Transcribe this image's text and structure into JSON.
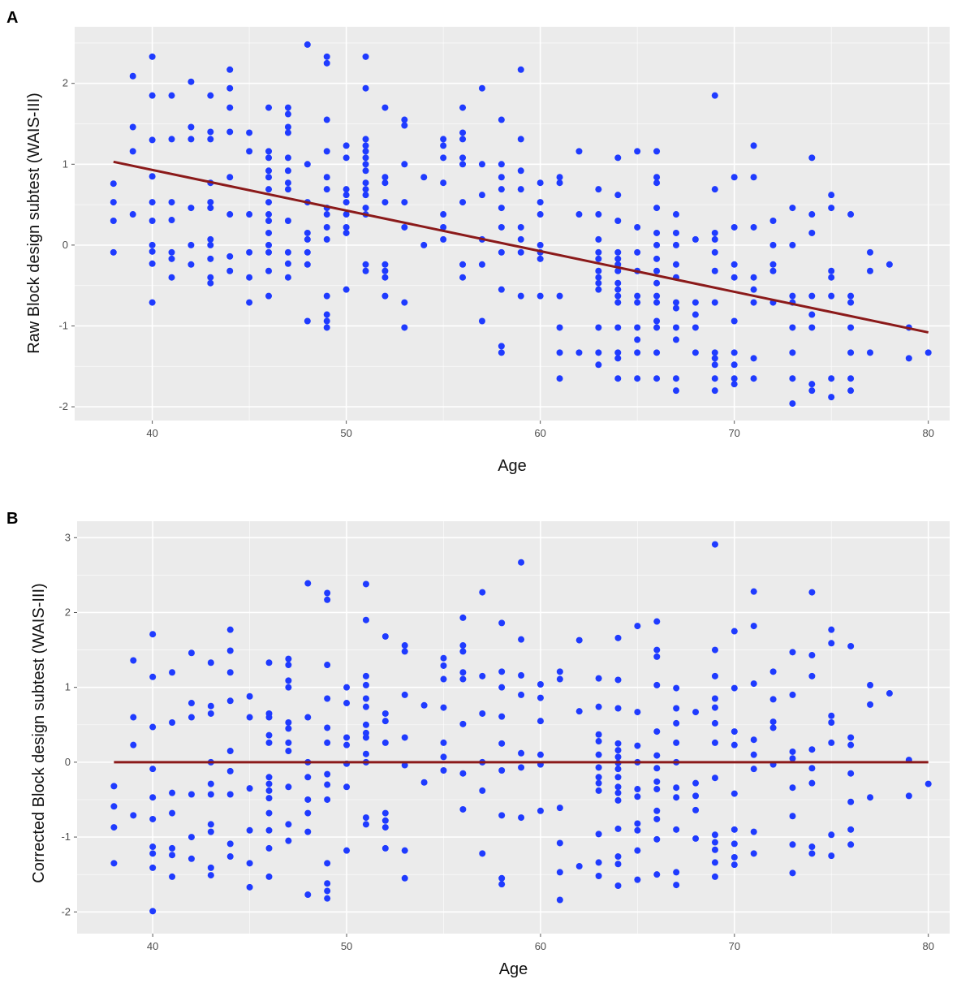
{
  "chart_data": [
    {
      "panel_label": "A",
      "type": "scatter",
      "xlabel": "Age",
      "ylabel": "Raw Block design subtest (WAIS-III)",
      "xticks": [
        40,
        50,
        60,
        70,
        80
      ],
      "yticks": [
        -2,
        -1,
        0,
        1,
        2
      ],
      "xlim": [
        36,
        81.1
      ],
      "ylim": [
        -2.17,
        2.7
      ],
      "grid": true,
      "background": "#EBEBEB",
      "point_color": "#1F3BFF",
      "fit_color": "#8B1A1A",
      "fit_line": [
        [
          38,
          1.03
        ],
        [
          80,
          -1.08
        ]
      ],
      "columns": [
        {
          "x": 38,
          "y": [
            0.76,
            0.53,
            0.3,
            -0.09
          ]
        },
        {
          "x": 39,
          "y": [
            2.09,
            1.46,
            1.16,
            0.38
          ]
        },
        {
          "x": 40,
          "y": [
            2.33,
            1.85,
            1.3,
            0.85,
            0.53,
            0.3,
            0,
            -0.08,
            -0.23,
            -0.71
          ]
        },
        {
          "x": 41,
          "y": [
            1.85,
            1.31,
            0.53,
            0.31,
            -0.09,
            -0.17,
            -0.4
          ]
        },
        {
          "x": 42,
          "y": [
            2.02,
            1.46,
            1.31,
            0.46,
            0,
            -0.24
          ]
        },
        {
          "x": 43,
          "y": [
            1.85,
            1.4,
            1.31,
            0.77,
            0.53,
            0.46,
            0.07,
            0,
            -0.17,
            -0.4,
            -0.47
          ]
        },
        {
          "x": 44,
          "y": [
            2.17,
            1.94,
            1.7,
            1.4,
            0.84,
            0.38,
            -0.14,
            -0.32
          ]
        },
        {
          "x": 45,
          "y": [
            1.39,
            1.16,
            0.38,
            -0.09,
            -0.4,
            -0.71
          ]
        },
        {
          "x": 46,
          "y": [
            1.7,
            1.16,
            1.08,
            0.92,
            0.84,
            0.69,
            0.53,
            0.38,
            0.3,
            0.15,
            0,
            -0.09,
            -0.32,
            -0.63
          ]
        },
        {
          "x": 47,
          "y": [
            1.7,
            1.62,
            1.46,
            1.39,
            1.08,
            0.92,
            0.77,
            0.69,
            0.3,
            -0.09,
            -0.23,
            -0.4
          ]
        },
        {
          "x": 48,
          "y": [
            2.48,
            1.0,
            0.53,
            0.15,
            0.07,
            -0.09,
            -0.24,
            -0.94
          ]
        },
        {
          "x": 49,
          "y": [
            2.33,
            2.25,
            1.55,
            1.16,
            0.84,
            0.69,
            0.46,
            0.38,
            0.22,
            0.07,
            -0.63,
            -0.86,
            -0.94,
            -1.02
          ]
        },
        {
          "x": 50,
          "y": [
            1.23,
            1.08,
            0.69,
            0.62,
            0.53,
            0.38,
            0.22,
            0.15,
            -0.55
          ]
        },
        {
          "x": 51,
          "y": [
            2.33,
            1.94,
            1.31,
            1.23,
            1.16,
            1.08,
            1.0,
            0.92,
            0.77,
            0.69,
            0.62,
            0.46,
            0.38,
            -0.24,
            -0.32
          ]
        },
        {
          "x": 52,
          "y": [
            1.7,
            0.84,
            0.77,
            0.53,
            -0.24,
            -0.32,
            -0.4,
            -0.63
          ]
        },
        {
          "x": 53,
          "y": [
            1.55,
            1.48,
            1.0,
            0.53,
            0.22,
            -0.71,
            -1.02
          ]
        },
        {
          "x": 54,
          "y": [
            0.84,
            0
          ]
        },
        {
          "x": 55,
          "y": [
            1.31,
            1.23,
            1.08,
            0.77,
            0.38,
            0.22,
            0.07
          ]
        },
        {
          "x": 56,
          "y": [
            1.7,
            1.39,
            1.31,
            1.08,
            1.0,
            0.53,
            -0.24,
            -0.4
          ]
        },
        {
          "x": 57,
          "y": [
            1.94,
            1.0,
            0.62,
            0.07,
            -0.24,
            -0.94
          ]
        },
        {
          "x": 58,
          "y": [
            1.55,
            1.0,
            0.84,
            0.69,
            0.46,
            0.22,
            -0.09,
            -0.55,
            -1.25,
            -1.33
          ]
        },
        {
          "x": 59,
          "y": [
            2.17,
            1.31,
            0.92,
            0.69,
            0.22,
            0.07,
            -0.09,
            -0.63
          ]
        },
        {
          "x": 60,
          "y": [
            0.77,
            0.53,
            0.38,
            0,
            -0.09,
            -0.17,
            -0.63
          ]
        },
        {
          "x": 61,
          "y": [
            0.84,
            0.77,
            -0.63,
            -1.02,
            -1.33,
            -1.65
          ]
        },
        {
          "x": 62,
          "y": [
            1.16,
            0.38,
            -1.33
          ]
        },
        {
          "x": 63,
          "y": [
            0.69,
            0.38,
            0.07,
            -0.09,
            -0.17,
            -0.32,
            -0.4,
            -0.47,
            -0.55,
            -1.02,
            -1.33,
            -1.48
          ]
        },
        {
          "x": 64,
          "y": [
            1.08,
            0.62,
            0.3,
            -0.09,
            -0.17,
            -0.24,
            -0.32,
            -0.47,
            -0.55,
            -0.63,
            -0.71,
            -1.02,
            -1.33,
            -1.4,
            -1.65
          ]
        },
        {
          "x": 65,
          "y": [
            1.16,
            0.22,
            -0.09,
            -0.32,
            -0.63,
            -0.71,
            -1.02,
            -1.17,
            -1.33,
            -1.65
          ]
        },
        {
          "x": 66,
          "y": [
            1.16,
            0.84,
            0.77,
            0.46,
            0.15,
            0,
            -0.17,
            -0.32,
            -0.47,
            -0.63,
            -0.71,
            -0.94,
            -1.02,
            -1.33,
            -1.65
          ]
        },
        {
          "x": 67,
          "y": [
            0.38,
            0.15,
            0,
            -0.24,
            -0.4,
            -0.71,
            -0.78,
            -1.02,
            -1.17,
            -1.65,
            -1.8
          ]
        },
        {
          "x": 68,
          "y": [
            0.07,
            -0.71,
            -0.86,
            -1.02,
            -1.33
          ]
        },
        {
          "x": 69,
          "y": [
            1.85,
            0.69,
            0.15,
            0.07,
            -0.09,
            -0.32,
            -0.71,
            -1.33,
            -1.4,
            -1.48,
            -1.65,
            -1.8
          ]
        },
        {
          "x": 70,
          "y": [
            0.84,
            0.22,
            -0.24,
            -0.4,
            -0.94,
            -1.33,
            -1.48,
            -1.65,
            -1.72
          ]
        },
        {
          "x": 71,
          "y": [
            1.23,
            0.84,
            0.22,
            -0.4,
            -0.55,
            -0.71,
            -1.4,
            -1.65
          ]
        },
        {
          "x": 72,
          "y": [
            0.3,
            0,
            -0.24,
            -0.32,
            -0.71
          ]
        },
        {
          "x": 73,
          "y": [
            0.46,
            0,
            -0.63,
            -0.71,
            -1.02,
            -1.33,
            -1.65,
            -1.96
          ]
        },
        {
          "x": 74,
          "y": [
            1.08,
            0.38,
            0.15,
            -0.63,
            -0.86,
            -1.02,
            -1.72,
            -1.8
          ]
        },
        {
          "x": 75,
          "y": [
            0.62,
            0.46,
            -0.32,
            -0.4,
            -0.63,
            -1.65,
            -1.88
          ]
        },
        {
          "x": 76,
          "y": [
            0.38,
            -0.63,
            -0.71,
            -1.02,
            -1.33,
            -1.65,
            -1.8
          ]
        },
        {
          "x": 77,
          "y": [
            -0.09,
            -0.32,
            -1.33
          ]
        },
        {
          "x": 78,
          "y": [
            -0.24
          ]
        },
        {
          "x": 79,
          "y": [
            -1.02,
            -1.4
          ]
        },
        {
          "x": 80,
          "y": [
            -1.33
          ]
        }
      ]
    },
    {
      "panel_label": "B",
      "type": "scatter",
      "xlabel": "Age",
      "ylabel": "Corrected Block design subtest (WAIS-III)",
      "xticks": [
        40,
        50,
        60,
        70,
        80
      ],
      "yticks": [
        -2,
        -1,
        0,
        1,
        2,
        3
      ],
      "xlim": [
        36.1,
        81.1
      ],
      "ylim": [
        -2.29,
        3.22
      ],
      "grid": true,
      "background": "#EBEBEB",
      "point_color": "#1F3BFF",
      "fit_color": "#8B1A1A",
      "fit_line": [
        [
          38,
          0
        ],
        [
          80,
          0
        ]
      ],
      "columns": [
        {
          "x": 38,
          "y": [
            -0.32,
            -0.59,
            -0.87,
            -1.35
          ]
        },
        {
          "x": 39,
          "y": [
            1.36,
            0.6,
            0.23,
            -0.71
          ]
        },
        {
          "x": 40,
          "y": [
            1.71,
            1.14,
            0.47,
            -0.09,
            -0.47,
            -0.76,
            -1.13,
            -1.22,
            -1.41,
            -1.99
          ]
        },
        {
          "x": 41,
          "y": [
            1.2,
            0.53,
            -0.41,
            -0.68,
            -1.15,
            -1.24,
            -1.53
          ]
        },
        {
          "x": 42,
          "y": [
            1.46,
            0.79,
            0.6,
            -0.43,
            -1.0,
            -1.29
          ]
        },
        {
          "x": 43,
          "y": [
            1.33,
            0.75,
            0.65,
            0,
            -0.29,
            -0.43,
            -0.83,
            -0.93,
            -1.41,
            -1.51
          ]
        },
        {
          "x": 44,
          "y": [
            1.77,
            1.49,
            1.2,
            0.82,
            0.15,
            -0.12,
            -0.43,
            -1.09,
            -1.26
          ]
        },
        {
          "x": 45,
          "y": [
            0.88,
            0.6,
            -0.35,
            -0.91,
            -1.35,
            -1.67
          ]
        },
        {
          "x": 46,
          "y": [
            1.33,
            0.65,
            0.6,
            0.36,
            0.26,
            -0.2,
            -0.29,
            -0.38,
            -0.48,
            -0.68,
            -0.91,
            -1.15,
            -1.53
          ]
        },
        {
          "x": 47,
          "y": [
            1.38,
            1.3,
            1.09,
            1.0,
            0.53,
            0.45,
            0.26,
            0.15,
            -0.33,
            -0.83,
            -1.05
          ]
        },
        {
          "x": 48,
          "y": [
            2.39,
            0.6,
            0,
            -0.2,
            -0.5,
            -0.68,
            -0.93,
            -1.77
          ]
        },
        {
          "x": 49,
          "y": [
            2.26,
            2.17,
            1.3,
            0.85,
            0.46,
            0.26,
            -0.16,
            -0.3,
            -0.5,
            -1.35,
            -1.62,
            -1.72,
            -1.82
          ]
        },
        {
          "x": 50,
          "y": [
            1.0,
            0.79,
            0.33,
            0.23,
            -0.02,
            -0.33,
            -1.18
          ]
        },
        {
          "x": 51,
          "y": [
            2.38,
            1.9,
            1.15,
            1.03,
            0.85,
            0.74,
            0.5,
            0.39,
            0.33,
            0.11,
            0,
            -0.74,
            -0.83
          ]
        },
        {
          "x": 52,
          "y": [
            1.68,
            0.65,
            0.55,
            0.26,
            -0.68,
            -0.78,
            -0.87,
            -1.15
          ]
        },
        {
          "x": 53,
          "y": [
            1.56,
            1.48,
            0.9,
            0.33,
            -0.04,
            -1.18,
            -1.55
          ]
        },
        {
          "x": 54,
          "y": [
            0.76,
            -0.27
          ]
        },
        {
          "x": 55,
          "y": [
            1.39,
            1.29,
            1.11,
            0.73,
            0.26,
            0.07,
            -0.11
          ]
        },
        {
          "x": 56,
          "y": [
            1.93,
            1.56,
            1.48,
            1.2,
            1.11,
            0.51,
            -0.15,
            -0.63
          ]
        },
        {
          "x": 57,
          "y": [
            2.27,
            1.15,
            0.65,
            0,
            -0.38,
            -1.22
          ]
        },
        {
          "x": 58,
          "y": [
            1.86,
            1.21,
            1.0,
            0.61,
            0.25,
            -0.11,
            -0.71,
            -1.55,
            -1.63
          ]
        },
        {
          "x": 59,
          "y": [
            2.67,
            1.64,
            1.16,
            0.9,
            0.12,
            -0.07,
            -0.74
          ]
        },
        {
          "x": 60,
          "y": [
            1.04,
            0.86,
            0.55,
            0.1,
            -0.03,
            -0.65
          ]
        },
        {
          "x": 61,
          "y": [
            1.21,
            1.11,
            -0.61,
            -1.08,
            -1.47,
            -1.84
          ]
        },
        {
          "x": 62,
          "y": [
            1.63,
            0.68,
            -1.39
          ]
        },
        {
          "x": 63,
          "y": [
            1.12,
            0.74,
            0.37,
            0.28,
            0.1,
            -0.07,
            -0.2,
            -0.28,
            -0.38,
            -0.96,
            -1.34,
            -1.52
          ]
        },
        {
          "x": 64,
          "y": [
            1.66,
            1.1,
            0.72,
            0.25,
            0.16,
            0.07,
            -0.01,
            -0.09,
            -0.2,
            -0.33,
            -0.41,
            -0.51,
            -0.89,
            -1.26,
            -1.36,
            -1.65
          ]
        },
        {
          "x": 65,
          "y": [
            1.82,
            0.67,
            0.22,
            0,
            -0.36,
            -0.46,
            -0.82,
            -0.91,
            -1.18,
            -1.57
          ]
        },
        {
          "x": 66,
          "y": [
            1.88,
            1.5,
            1.41,
            1.03,
            0.41,
            0.09,
            -0.08,
            -0.26,
            -0.36,
            -0.65,
            -0.76,
            -1.03,
            -1.5
          ]
        },
        {
          "x": 67,
          "y": [
            0.99,
            0.72,
            0.52,
            0.26,
            0,
            -0.34,
            -0.47,
            -0.9,
            -1.47,
            -1.64
          ]
        },
        {
          "x": 68,
          "y": [
            0.67,
            -0.28,
            -0.45,
            -0.64,
            -1.02
          ]
        },
        {
          "x": 69,
          "y": [
            2.91,
            1.5,
            1.15,
            0.85,
            0.73,
            0.52,
            0.26,
            -0.21,
            -0.97,
            -1.07,
            -1.17,
            -1.34,
            -1.53
          ]
        },
        {
          "x": 70,
          "y": [
            1.75,
            0.99,
            0.41,
            0.23,
            -0.42,
            -0.9,
            -1.09,
            -1.27,
            -1.37
          ]
        },
        {
          "x": 71,
          "y": [
            2.28,
            1.82,
            1.05,
            0.3,
            0.1,
            -0.09,
            -0.93,
            -1.22
          ]
        },
        {
          "x": 72,
          "y": [
            1.21,
            0.84,
            0.54,
            0.46,
            -0.03
          ]
        },
        {
          "x": 73,
          "y": [
            1.47,
            0.9,
            0.14,
            0.05,
            -0.34,
            -0.72,
            -1.1,
            -1.48
          ]
        },
        {
          "x": 74,
          "y": [
            2.27,
            1.43,
            1.15,
            0.17,
            -0.08,
            -0.28,
            -1.13,
            -1.22
          ]
        },
        {
          "x": 75,
          "y": [
            1.77,
            1.59,
            0.62,
            0.53,
            0.26,
            -0.97,
            -1.25
          ]
        },
        {
          "x": 76,
          "y": [
            1.55,
            0.33,
            0.23,
            -0.15,
            -0.53,
            -0.9,
            -1.1
          ]
        },
        {
          "x": 77,
          "y": [
            1.03,
            0.77,
            -0.47
          ]
        },
        {
          "x": 78,
          "y": [
            0.92
          ]
        },
        {
          "x": 79,
          "y": [
            0.03,
            -0.45
          ]
        },
        {
          "x": 80,
          "y": [
            -0.29
          ]
        }
      ]
    }
  ]
}
